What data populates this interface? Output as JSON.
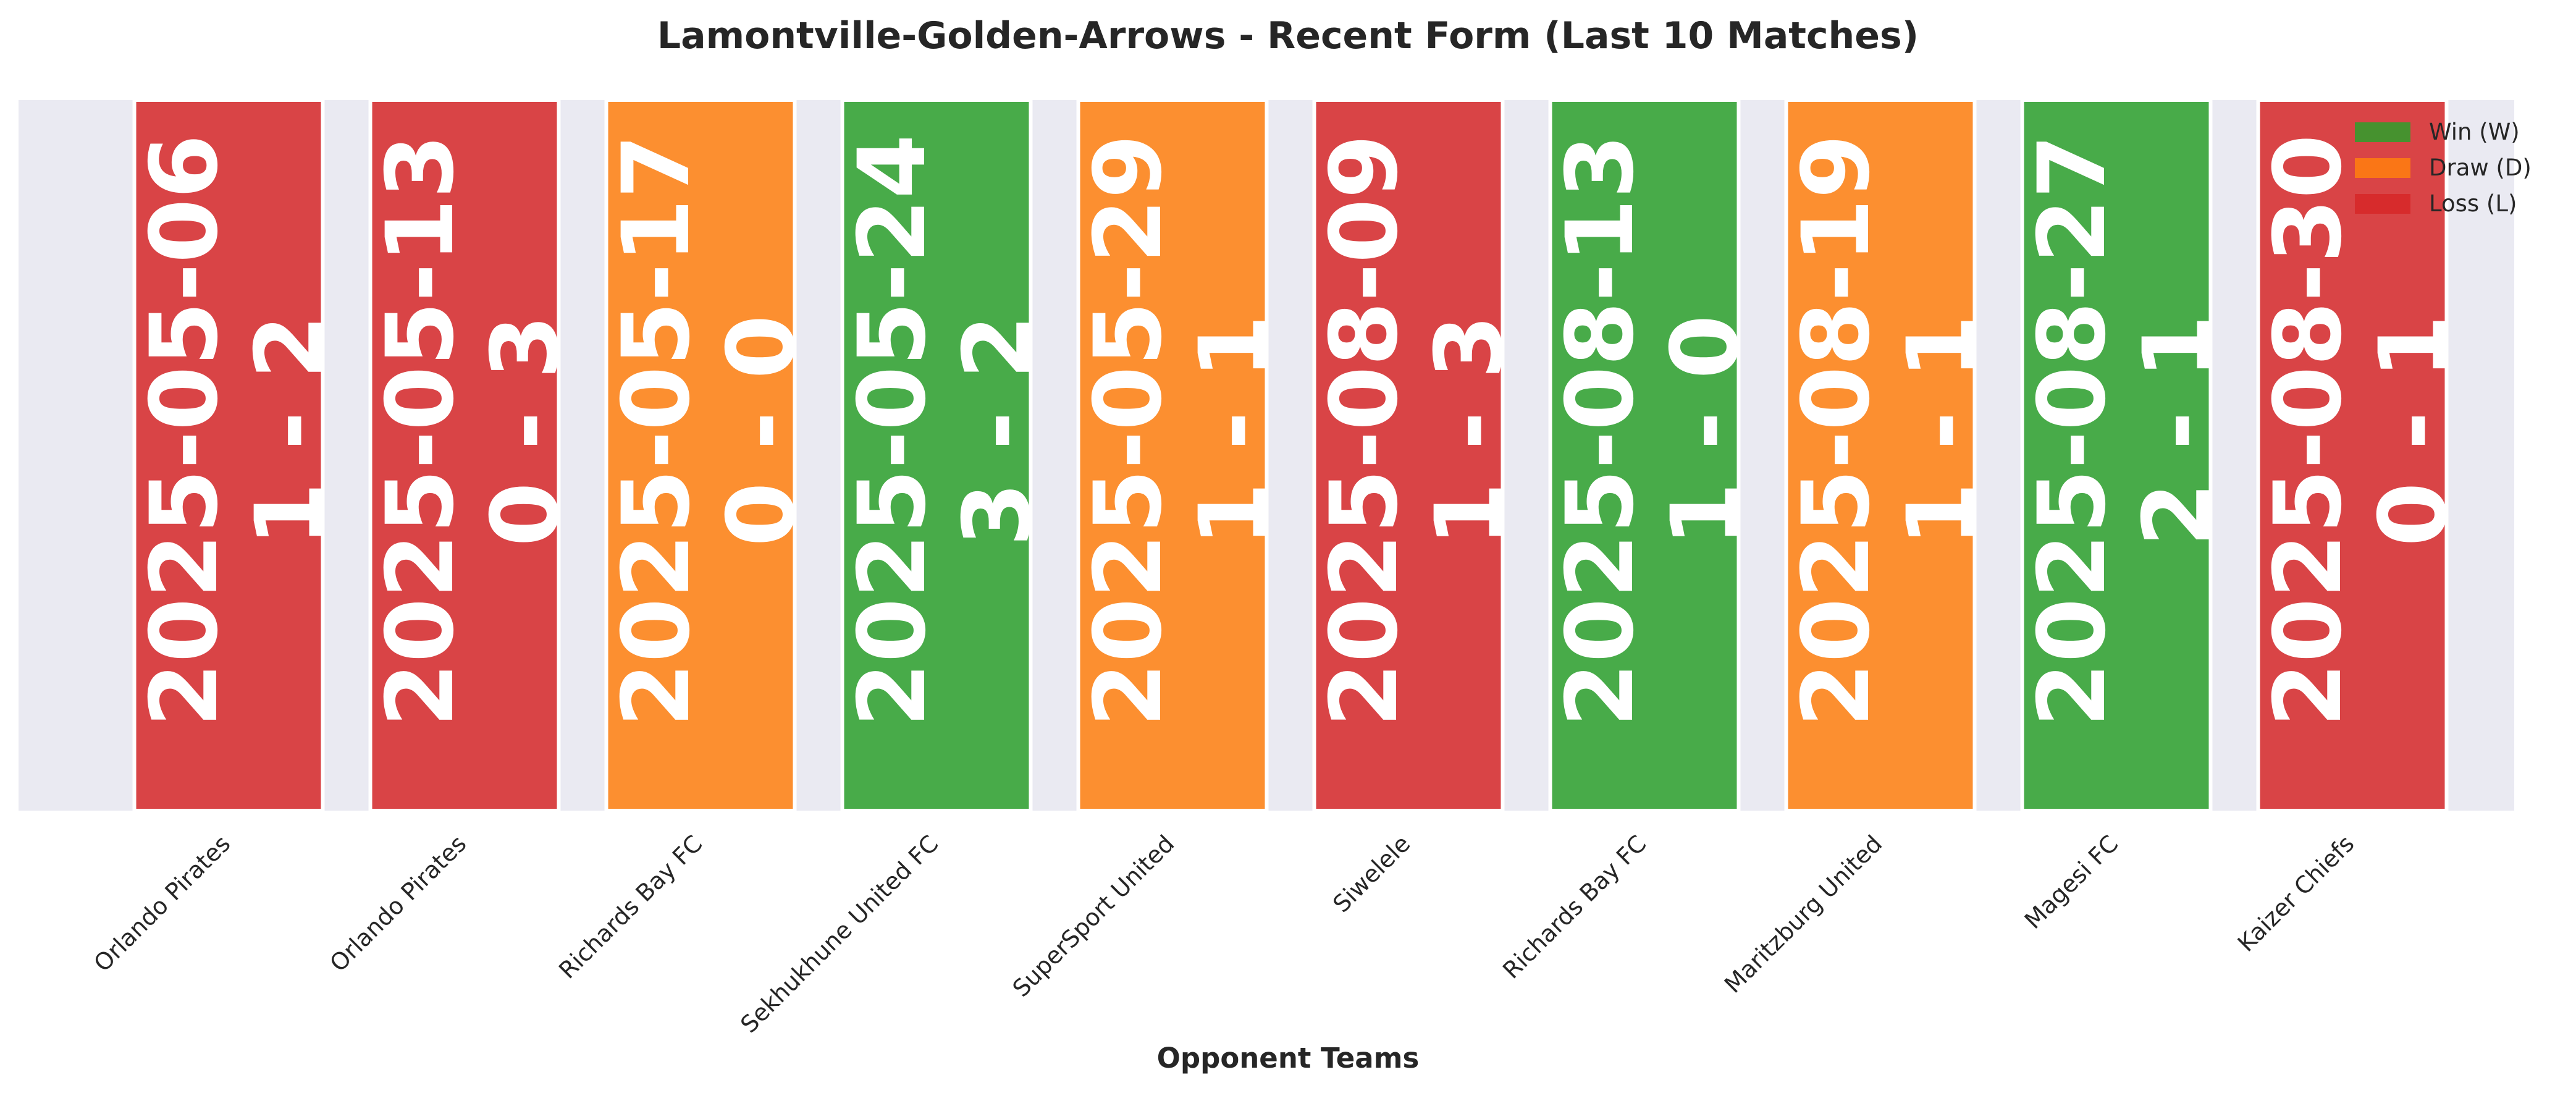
{
  "chart_data": {
    "type": "bar",
    "title": "Lamontville-Golden-Arrows - Recent Form (Last 10 Matches)",
    "xlabel": "Opponent Teams",
    "ylabel": "",
    "categories": [
      "Orlando Pirates",
      "Orlando Pirates",
      "Richards Bay FC",
      "Sekhukhune United FC",
      "SuperSport United",
      "Siwelele",
      "Richards Bay FC",
      "Maritzburg United",
      "Magesi FC",
      "Kaizer Chiefs"
    ],
    "values": [
      1,
      1,
      1,
      1,
      1,
      1,
      1,
      1,
      1,
      1
    ],
    "results": [
      "L",
      "L",
      "D",
      "W",
      "D",
      "L",
      "W",
      "D",
      "W",
      "L"
    ],
    "dates": [
      "2025-05-06",
      "2025-05-13",
      "2025-05-17",
      "2025-05-24",
      "2025-05-29",
      "2025-08-09",
      "2025-08-13",
      "2025-08-19",
      "2025-08-27",
      "2025-08-30"
    ],
    "scores": [
      "1 - 2",
      "0 - 3",
      "0 - 0",
      "3 - 2",
      "1 - 1",
      "1 - 3",
      "1 - 0",
      "1 - 1",
      "2 - 1",
      "0 - 1"
    ],
    "ylim": [
      0,
      1
    ],
    "grid": true,
    "legend": {
      "placement": "top-right",
      "entries": [
        {
          "key": "W",
          "label": "Win (W)",
          "color": "#2ca02c"
        },
        {
          "key": "D",
          "label": "Draw (D)",
          "color": "#ff7f0e"
        },
        {
          "key": "L",
          "label": "Loss (L)",
          "color": "#d62728"
        }
      ]
    },
    "colors": {
      "W": "#2ca02c",
      "D": "#ff7f0e",
      "L": "#d62728",
      "background": "#eaeaf2"
    }
  }
}
